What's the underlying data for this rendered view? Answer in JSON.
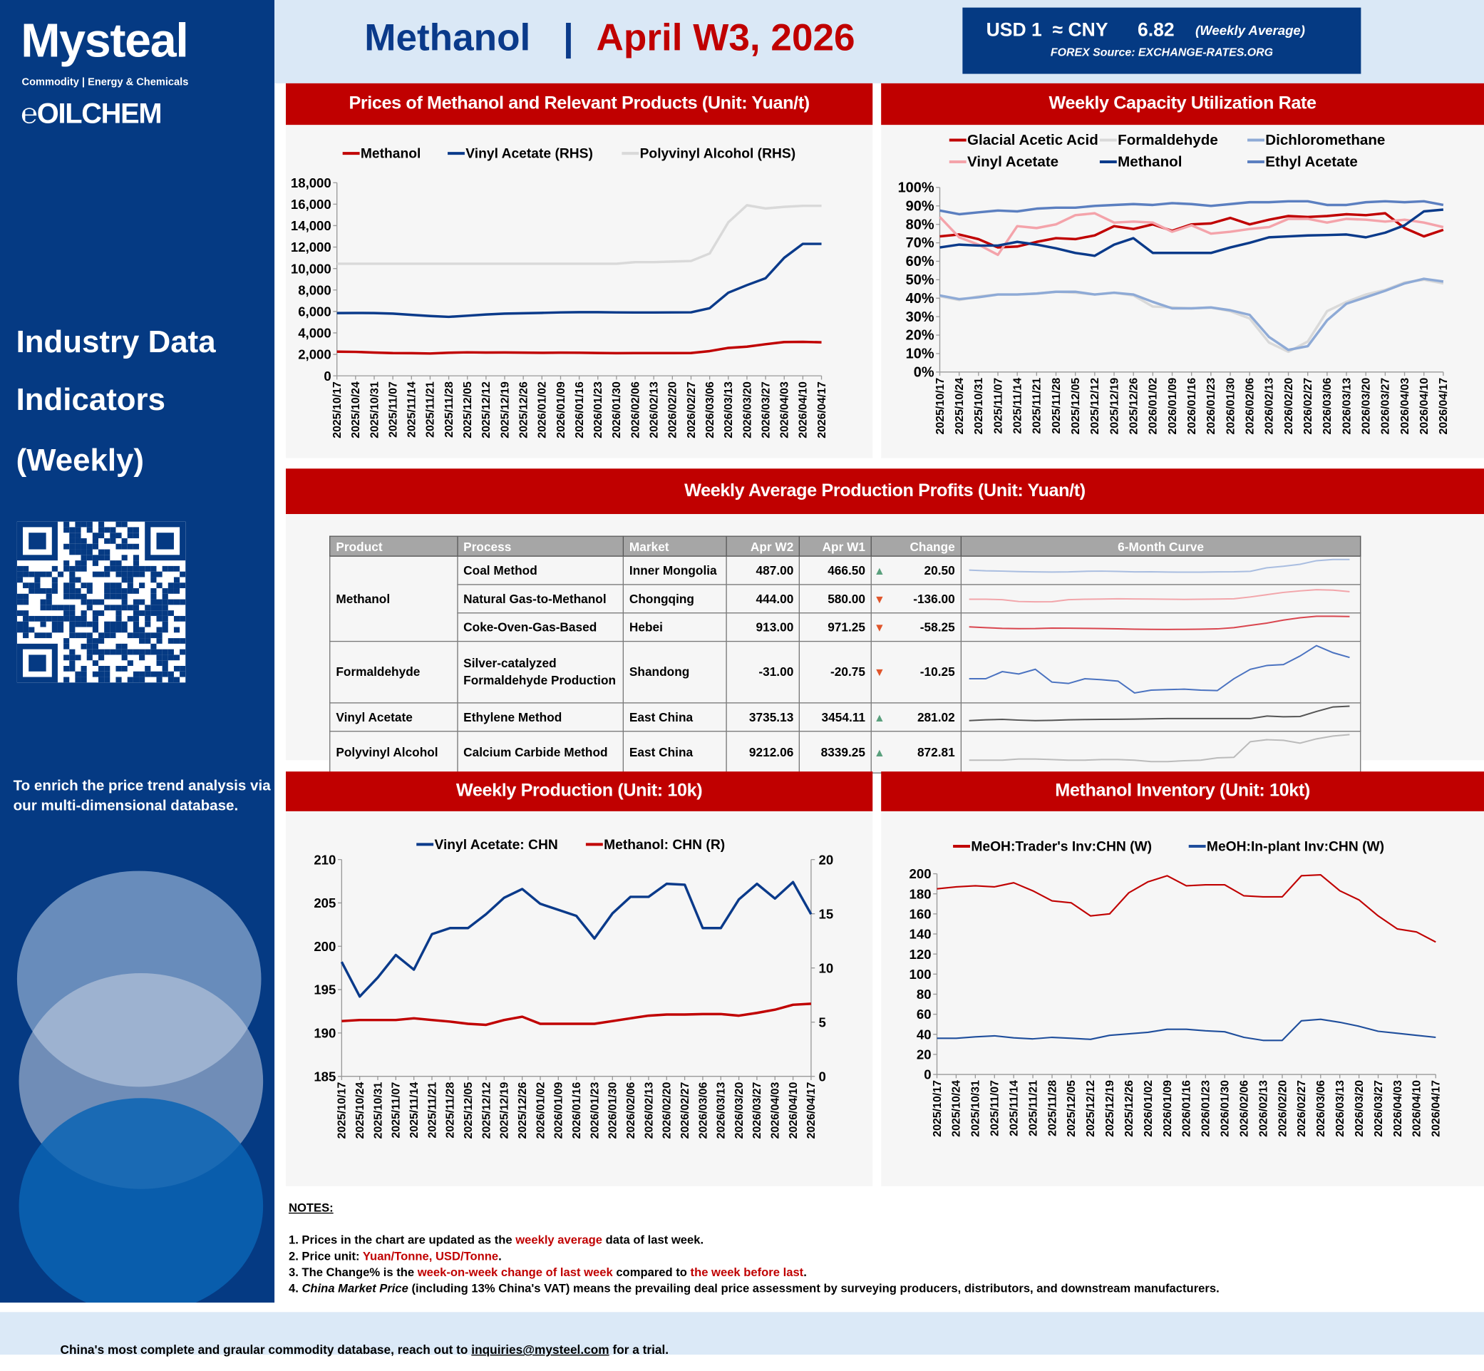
{
  "logo": {
    "brand": "Mysteal",
    "tagline": "Commodity | Energy & Chemicals",
    "sub": "OILCHEM"
  },
  "sidebar": {
    "title_lines": [
      "Industry Data",
      "Indicators",
      "(Weekly)"
    ],
    "description": "To enrich the price trend analysis via our multi-dimensional database."
  },
  "header": {
    "product": "Methanol",
    "separator": "|",
    "period": "April W3, 2026",
    "fx": {
      "label": "USD 1  ≈ CNY",
      "rate": "6.82",
      "note": "(Weekly Average)",
      "source": "FOREX Source: EXCHANGE-RATES.ORG"
    }
  },
  "panels": {
    "prices": "Prices of  Methanol and Relevant Products (Unit: Yuan/t)",
    "capacity": "Weekly Capacity Utilization Rate",
    "profits": "Weekly Average Production Profits (Unit: Yuan/t)",
    "production": "Weekly Production (Unit: 10k)",
    "inventory": "Methanol Inventory (Unit: 10kt)"
  },
  "colors": {
    "brand_blue": "#053a83",
    "header_red": "#c00000",
    "up": "#5aa07d",
    "down": "#e0552b"
  },
  "profits_table": {
    "headers": [
      "Product",
      "Process",
      "Market",
      "Apr W2",
      "Apr W1",
      "Change",
      "6-Month Curve"
    ],
    "rows": [
      {
        "product": "Methanol",
        "process": "Coal Method",
        "market": "Inner Mongolia",
        "w2": "487.00",
        "w1": "466.50",
        "dir": "up",
        "change": "20.50",
        "curve_color": "#a9bde0",
        "curve": [
          0.3,
          0.25,
          0.23,
          0.2,
          0.18,
          0.17,
          0.18,
          0.22,
          0.23,
          0.21,
          0.18,
          0.19,
          0.17,
          0.16,
          0.16,
          0.18,
          0.19,
          0.22,
          0.45,
          0.55,
          0.68,
          0.92,
          1,
          1
        ]
      },
      {
        "product": "",
        "process": "Natural Gas-to-Methanol",
        "market": "Chongqing",
        "w2": "444.00",
        "w1": "580.00",
        "dir": "down",
        "change": "-136.00",
        "curve_color": "#f2a5aa",
        "curve": [
          0.25,
          0.25,
          0.22,
          0.1,
          0.08,
          0.09,
          0.22,
          0.25,
          0.26,
          0.28,
          0.27,
          0.26,
          0.25,
          0.24,
          0.25,
          0.26,
          0.28,
          0.4,
          0.55,
          0.7,
          0.8,
          0.88,
          0.85,
          0.75
        ]
      },
      {
        "product": "",
        "process": "Coke-Oven-Gas-Based",
        "market": "Hebei",
        "w2": "913.00",
        "w1": "971.25",
        "dir": "down",
        "change": "-58.25",
        "curve_color": "#d9464f",
        "curve": [
          0.3,
          0.25,
          0.2,
          0.18,
          0.19,
          0.22,
          0.21,
          0.2,
          0.19,
          0.17,
          0.15,
          0.14,
          0.13,
          0.14,
          0.15,
          0.17,
          0.25,
          0.4,
          0.55,
          0.75,
          0.9,
          1,
          1,
          0.98
        ]
      },
      {
        "product": "Formaldehyde",
        "process": "Silver-catalyzed Formaldehyde Production",
        "market": "Shandong",
        "w2": "-31.00",
        "w1": "-20.75",
        "dir": "down",
        "change": "-10.25",
        "curve_color": "#4a72c0",
        "curve": [
          0.3,
          0.3,
          0.45,
          0.4,
          0.5,
          0.23,
          0.2,
          0.3,
          0.28,
          0.25,
          0.0,
          0.06,
          0.07,
          0.08,
          0.06,
          0.05,
          0.3,
          0.5,
          0.58,
          0.6,
          0.78,
          1,
          0.85,
          0.75
        ]
      },
      {
        "product": "Vinyl Acetate",
        "process": "Ethylene Method",
        "market": "East China",
        "w2": "3735.13",
        "w1": "3454.11",
        "dir": "up",
        "change": "281.02",
        "curve_color": "#555555",
        "curve": [
          0.05,
          0.1,
          0.13,
          0.08,
          0.05,
          0.07,
          0.1,
          0.12,
          0.13,
          0.14,
          0.15,
          0.17,
          0.18,
          0.18,
          0.18,
          0.18,
          0.18,
          0.18,
          0.35,
          0.3,
          0.32,
          0.65,
          0.95,
          1
        ]
      },
      {
        "product": "Polyvinyl Alcohol",
        "process": "Calcium Carbide Method",
        "market": "East China",
        "w2": "9212.06",
        "w1": "8339.25",
        "dir": "up",
        "change": "872.81",
        "curve_color": "#bbbbbb",
        "curve": [
          0.1,
          0.1,
          0.1,
          0.14,
          0.14,
          0.12,
          0.1,
          0.1,
          0.12,
          0.12,
          0.1,
          0.05,
          0.05,
          0.08,
          0.1,
          0.18,
          0.2,
          0.75,
          0.82,
          0.8,
          0.7,
          0.85,
          0.95,
          1
        ]
      }
    ]
  },
  "notes": {
    "title": "NOTES:",
    "items": [
      [
        {
          "t": "1. Prices in the chart are updated as the "
        },
        {
          "t": "weekly average",
          "red": true
        },
        {
          "t": " data of last week."
        }
      ],
      [
        {
          "t": "2. Price unit: "
        },
        {
          "t": "Yuan/Tonne, USD/Tonne",
          "red": true
        },
        {
          "t": "."
        }
      ],
      [
        {
          "t": "3. The Change% is the "
        },
        {
          "t": "week-on-week change of last week",
          "red": true
        },
        {
          "t": " compared to "
        },
        {
          "t": "the week before last",
          "red": true
        },
        {
          "t": "."
        }
      ],
      [
        {
          "t": "4. "
        },
        {
          "t": "China Market Price",
          "italic": true
        },
        {
          "t": " (including 13% China's VAT) means the prevailing deal price assessment by surveying producers, distributors, and downstream manufacturers."
        }
      ]
    ]
  },
  "footer": {
    "pre": "China's most complete and graular commodity database, reach out to ",
    "email": "inquiries@mysteel.com",
    "post": " for a trial."
  },
  "chart_data": [
    {
      "type": "line",
      "title": "Prices of  Methanol and Relevant Products (Unit: Yuan/t)",
      "ylim": [
        0,
        18000
      ],
      "yticks": [
        "0",
        "2,000",
        "4,000",
        "6,000",
        "8,000",
        "10,000",
        "12,000",
        "14,000",
        "16,000",
        "18,000"
      ],
      "legend": "top",
      "grid": false,
      "x": [
        "2025/10/17",
        "2025/10/24",
        "2025/10/31",
        "2025/11/07",
        "2025/11/14",
        "2025/11/21",
        "2025/11/28",
        "2025/12/05",
        "2025/12/12",
        "2025/12/19",
        "2025/12/26",
        "2026/01/02",
        "2026/01/09",
        "2026/01/16",
        "2026/01/23",
        "2026/01/30",
        "2026/02/06",
        "2026/02/13",
        "2026/02/20",
        "2026/02/27",
        "2026/03/06",
        "2026/03/13",
        "2026/03/20",
        "2026/03/27",
        "2026/04/03",
        "2026/04/10",
        "2026/04/17"
      ],
      "series": [
        {
          "name": "Methanol",
          "color": "#c00000",
          "values": [
            2250,
            2230,
            2170,
            2120,
            2110,
            2080,
            2150,
            2190,
            2170,
            2180,
            2160,
            2140,
            2160,
            2150,
            2130,
            2110,
            2120,
            2120,
            2120,
            2130,
            2300,
            2600,
            2720,
            2950,
            3150,
            3170,
            3120
          ]
        },
        {
          "name": "Vinyl Acetate (RHS)",
          "color": "#0a3a8a",
          "values": [
            5850,
            5860,
            5850,
            5800,
            5680,
            5580,
            5500,
            5600,
            5720,
            5800,
            5830,
            5870,
            5910,
            5930,
            5930,
            5910,
            5900,
            5900,
            5910,
            5920,
            6300,
            7750,
            8450,
            9100,
            11000,
            12300,
            12300
          ]
        },
        {
          "name": "Polyvinyl Alcohol (RHS)",
          "color": "#d9d9d9",
          "values": [
            10450,
            10450,
            10450,
            10450,
            10450,
            10450,
            10450,
            10450,
            10450,
            10450,
            10450,
            10450,
            10450,
            10450,
            10450,
            10450,
            10600,
            10600,
            10650,
            10700,
            11400,
            14300,
            15900,
            15600,
            15750,
            15850,
            15850
          ]
        }
      ]
    },
    {
      "type": "line",
      "title": "Weekly Capacity Utilization Rate",
      "ylim": [
        0,
        100
      ],
      "yticks": [
        "0%",
        "10%",
        "20%",
        "30%",
        "40%",
        "50%",
        "60%",
        "70%",
        "80%",
        "90%",
        "100%"
      ],
      "legend": "top",
      "grid": false,
      "x": [
        "2025/10/17",
        "2025/10/24",
        "2025/10/31",
        "2025/11/07",
        "2025/11/14",
        "2025/11/21",
        "2025/11/28",
        "2025/12/05",
        "2025/12/12",
        "2025/12/19",
        "2025/12/26",
        "2026/01/02",
        "2026/01/09",
        "2026/01/16",
        "2026/01/23",
        "2026/01/30",
        "2026/02/06",
        "2026/02/13",
        "2026/02/20",
        "2026/02/27",
        "2026/03/06",
        "2026/03/13",
        "2026/03/20",
        "2026/03/27",
        "2026/04/03",
        "2026/04/10",
        "2026/04/17"
      ],
      "series": [
        {
          "name": "Glacial Acetic Acid",
          "color": "#c00000",
          "values": [
            73.5,
            74.5,
            72,
            67.5,
            68,
            70.5,
            72.5,
            72,
            74,
            79,
            77.5,
            80,
            76.5,
            80,
            80.5,
            83.5,
            80,
            82.5,
            84.5,
            84,
            84.5,
            85.5,
            85,
            86,
            78,
            73.5,
            77
          ]
        },
        {
          "name": "Formaldehyde",
          "color": "#d9d9d9",
          "values": [
            41,
            39,
            41,
            42,
            42,
            42.5,
            43.5,
            43,
            42,
            43,
            41.5,
            35.5,
            35,
            34.5,
            35,
            33,
            29,
            16,
            11,
            16.5,
            33,
            38,
            42,
            44.5,
            48.5,
            50,
            48
          ]
        },
        {
          "name": "Dichloromethane",
          "color": "#8eaad6",
          "values": [
            41.5,
            39.5,
            40.5,
            42,
            42,
            42.5,
            43.5,
            43.5,
            42,
            43,
            42,
            38,
            34.5,
            34.5,
            35,
            33.5,
            31,
            19,
            12,
            14,
            28,
            37,
            40.5,
            44,
            48,
            50.5,
            49
          ]
        },
        {
          "name": "Vinyl Acetate",
          "color": "#f4a3aa",
          "values": [
            84,
            73,
            69,
            63.5,
            79,
            78,
            80,
            85,
            86,
            81,
            81.5,
            81,
            76,
            79.5,
            75,
            76,
            77.5,
            78.5,
            83,
            83,
            81,
            83,
            82.5,
            81.5,
            82.5,
            81,
            78.5
          ]
        },
        {
          "name": "Methanol",
          "color": "#0a3a8a",
          "values": [
            67.5,
            69,
            68.5,
            68.5,
            70.5,
            69,
            67,
            64.5,
            63,
            69,
            72.5,
            64.5,
            64.5,
            64.5,
            64.5,
            67.5,
            70,
            73,
            73.5,
            74,
            74.2,
            74.5,
            73,
            75.5,
            79.5,
            87,
            88
          ]
        },
        {
          "name": "Ethyl Acetate",
          "color": "#5b7fc0",
          "values": [
            87.5,
            85.5,
            86.5,
            87.5,
            87,
            88.5,
            89,
            89,
            90,
            90.5,
            91,
            90.5,
            91.5,
            91,
            90,
            91,
            92,
            92,
            92.5,
            92.5,
            90.5,
            90.5,
            92,
            92.5,
            92,
            92.5,
            90.5
          ]
        }
      ]
    },
    {
      "type": "line",
      "title": "Weekly Production (Unit: 10k)",
      "ylim": [
        185,
        210
      ],
      "y2lim": [
        0,
        20
      ],
      "yticks": [
        "185",
        "190",
        "195",
        "200",
        "205",
        "210"
      ],
      "y2ticks": [
        "0",
        "5",
        "10",
        "15",
        "20"
      ],
      "legend": "top",
      "grid": false,
      "x": [
        "2025/10/17",
        "2025/10/24",
        "2025/10/31",
        "2025/11/07",
        "2025/11/14",
        "2025/11/21",
        "2025/11/28",
        "2025/12/05",
        "2025/12/12",
        "2025/12/19",
        "2025/12/26",
        "2026/01/02",
        "2026/01/09",
        "2026/01/16",
        "2026/01/23",
        "2026/01/30",
        "2026/02/06",
        "2026/02/13",
        "2026/02/20",
        "2026/02/27",
        "2026/03/06",
        "2026/03/13",
        "2026/03/20",
        "2026/03/27",
        "2026/04/03",
        "2026/04/10",
        "2026/04/17"
      ],
      "series": [
        {
          "name": "Vinyl Acetate: CHN",
          "color": "#0a3a8a",
          "axis": "left",
          "values": [
            198.2,
            194.2,
            196.4,
            199,
            197.3,
            201.4,
            202.1,
            202.1,
            203.7,
            205.6,
            206.6,
            204.9,
            204.2,
            203.5,
            200.9,
            203.8,
            205.7,
            205.7,
            207.2,
            207.1,
            202.1,
            202.1,
            205.4,
            207.2,
            205.5,
            207.4,
            203.7
          ]
        },
        {
          "name": "Methanol: CHN (R)",
          "color": "#c00000",
          "axis": "right",
          "values": [
            5.1,
            5.2,
            5.2,
            5.2,
            5.35,
            5.2,
            5.05,
            4.85,
            4.75,
            5.2,
            5.5,
            4.85,
            4.85,
            4.85,
            4.85,
            5.1,
            5.35,
            5.6,
            5.7,
            5.7,
            5.75,
            5.75,
            5.6,
            5.85,
            6.15,
            6.6,
            6.7
          ]
        }
      ]
    },
    {
      "type": "line",
      "title": "Methanol Inventory (Unit: 10kt)",
      "ylim": [
        0,
        200
      ],
      "yticks": [
        "0",
        "20",
        "40",
        "60",
        "80",
        "100",
        "120",
        "140",
        "160",
        "180",
        "200"
      ],
      "legend": "top",
      "grid": false,
      "x": [
        "2025/10/17",
        "2025/10/24",
        "2025/10/31",
        "2025/11/07",
        "2025/11/14",
        "2025/11/21",
        "2025/11/28",
        "2025/12/05",
        "2025/12/12",
        "2025/12/19",
        "2025/12/26",
        "2026/01/02",
        "2026/01/09",
        "2026/01/16",
        "2026/01/23",
        "2026/01/30",
        "2026/02/06",
        "2026/02/13",
        "2026/02/20",
        "2026/02/27",
        "2026/03/06",
        "2026/03/13",
        "2026/03/20",
        "2026/03/27",
        "2026/04/03",
        "2026/04/10",
        "2026/04/17"
      ],
      "series": [
        {
          "name": "MeOH:Trader's Inv:CHN (W)",
          "color": "#c00000",
          "values": [
            185,
            187,
            188,
            187,
            191,
            183,
            173,
            171,
            158,
            160,
            181,
            192,
            198,
            188,
            189,
            189,
            178,
            177,
            177,
            198,
            199,
            183,
            174,
            158,
            145,
            142,
            132
          ]
        },
        {
          "name": "MeOH:In-plant Inv:CHN (W)",
          "color": "#1f4e9c",
          "values": [
            36,
            36,
            37.5,
            38.5,
            36.5,
            35.5,
            37,
            36,
            35,
            39,
            40.5,
            42,
            45,
            45,
            43.5,
            42.5,
            37,
            34,
            34,
            53.5,
            55,
            52,
            48,
            43,
            41,
            39,
            37
          ]
        }
      ]
    }
  ]
}
